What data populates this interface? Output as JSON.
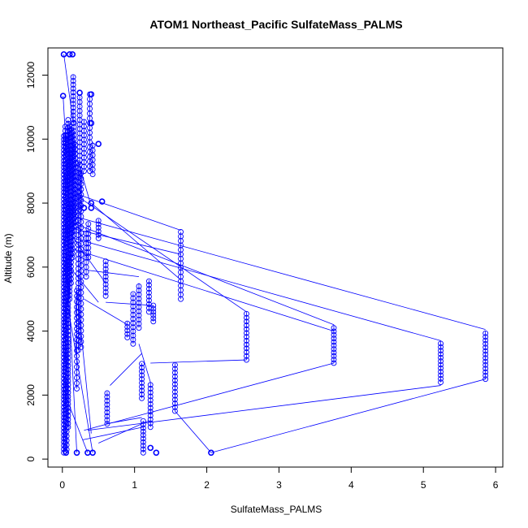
{
  "chart_data": {
    "type": "scatter",
    "title": "ATOM1 Northeast_Pacific SulfateMass_PALMS",
    "xlabel": "SulfateMass_PALMS",
    "ylabel": "Altitude (m)",
    "xlim": [
      -0.2,
      6.1
    ],
    "ylim": [
      -250,
      12850
    ],
    "xticks": [
      0,
      1,
      2,
      3,
      4,
      5,
      6
    ],
    "yticks": [
      0,
      2000,
      4000,
      6000,
      8000,
      10000,
      12000
    ],
    "connect_points": true,
    "marker": "open-circle",
    "color": "#0000ff",
    "clusters": [
      {
        "x": 0.02,
        "ymin": 200,
        "ymax": 10200,
        "step": 110
      },
      {
        "x": 0.04,
        "ymin": 250,
        "ymax": 10400,
        "step": 130
      },
      {
        "x": 0.06,
        "ymin": 300,
        "ymax": 10100,
        "step": 140
      },
      {
        "x": 0.08,
        "ymin": 1000,
        "ymax": 10600,
        "step": 120
      },
      {
        "x": 0.1,
        "ymin": 5000,
        "ymax": 10500,
        "step": 120
      },
      {
        "x": 0.12,
        "ymin": 5500,
        "ymax": 10400,
        "step": 130
      },
      {
        "x": 0.14,
        "ymin": 6300,
        "ymax": 10200,
        "step": 130
      },
      {
        "x": 0.16,
        "ymin": 7000,
        "ymax": 10600,
        "step": 130
      },
      {
        "x": 0.15,
        "ymin": 10500,
        "ymax": 12000,
        "step": 120
      },
      {
        "x": 0.18,
        "ymin": 7300,
        "ymax": 9900,
        "step": 140
      },
      {
        "x": 0.2,
        "ymin": 2200,
        "ymax": 5300,
        "step": 170
      },
      {
        "x": 0.22,
        "ymin": 3400,
        "ymax": 9300,
        "step": 150
      },
      {
        "x": 0.24,
        "ymin": 7800,
        "ymax": 11400,
        "step": 140
      },
      {
        "x": 0.26,
        "ymin": 3500,
        "ymax": 9000,
        "step": 170
      },
      {
        "x": 0.3,
        "ymin": 9000,
        "ymax": 10600,
        "step": 140
      },
      {
        "x": 0.33,
        "ymin": 5700,
        "ymax": 7100,
        "step": 150
      },
      {
        "x": 0.36,
        "ymin": 6300,
        "ymax": 7400,
        "step": 150
      },
      {
        "x": 0.38,
        "ymin": 9000,
        "ymax": 11400,
        "step": 150
      },
      {
        "x": 0.42,
        "ymin": 8900,
        "ymax": 9900,
        "step": 150
      },
      {
        "x": 0.5,
        "ymin": 6900,
        "ymax": 7500,
        "step": 110
      },
      {
        "x": 0.6,
        "ymin": 5100,
        "ymax": 6200,
        "step": 120
      },
      {
        "x": 0.62,
        "ymin": 1100,
        "ymax": 2100,
        "step": 120
      },
      {
        "x": 0.9,
        "ymin": 3800,
        "ymax": 4300,
        "step": 110
      },
      {
        "x": 0.98,
        "ymin": 3600,
        "ymax": 5200,
        "step": 130
      },
      {
        "x": 1.06,
        "ymin": 4100,
        "ymax": 5500,
        "step": 130
      },
      {
        "x": 1.1,
        "ymin": 1900,
        "ymax": 3000,
        "step": 120
      },
      {
        "x": 1.12,
        "ymin": 200,
        "ymax": 1200,
        "step": 110
      },
      {
        "x": 1.2,
        "ymin": 4600,
        "ymax": 5600,
        "step": 120
      },
      {
        "x": 1.22,
        "ymin": 1000,
        "ymax": 2400,
        "step": 120
      },
      {
        "x": 1.26,
        "ymin": 4300,
        "ymax": 4800,
        "step": 100
      },
      {
        "x": 1.56,
        "ymin": 1500,
        "ymax": 3000,
        "step": 120
      },
      {
        "x": 1.64,
        "ymin": 5000,
        "ymax": 7100,
        "step": 140
      },
      {
        "x": 2.55,
        "ymin": 3100,
        "ymax": 4600,
        "step": 120
      },
      {
        "x": 3.76,
        "ymin": 3000,
        "ymax": 4200,
        "step": 110
      },
      {
        "x": 5.24,
        "ymin": 2400,
        "ymax": 3700,
        "step": 110
      },
      {
        "x": 5.86,
        "ymin": 2500,
        "ymax": 4000,
        "step": 110
      }
    ],
    "isolated_points": [
      {
        "x": 0.02,
        "y": 12650
      },
      {
        "x": 0.1,
        "y": 12650
      },
      {
        "x": 0.14,
        "y": 12650
      },
      {
        "x": 0.01,
        "y": 11350
      },
      {
        "x": 0.24,
        "y": 11450
      },
      {
        "x": 0.4,
        "y": 11400
      },
      {
        "x": 0.4,
        "y": 10500
      },
      {
        "x": 0.5,
        "y": 9850
      },
      {
        "x": 0.55,
        "y": 8050
      },
      {
        "x": 0.4,
        "y": 8000
      },
      {
        "x": 0.3,
        "y": 7850
      },
      {
        "x": 0.4,
        "y": 7850
      },
      {
        "x": 0.05,
        "y": 200
      },
      {
        "x": 0.2,
        "y": 200
      },
      {
        "x": 0.35,
        "y": 200
      },
      {
        "x": 0.42,
        "y": 200
      },
      {
        "x": 1.22,
        "y": 350
      },
      {
        "x": 1.3,
        "y": 200
      },
      {
        "x": 2.06,
        "y": 200
      }
    ],
    "connecting_lines": [
      {
        "x1": 0.18,
        "y1": 8300,
        "x2": 1.64,
        "y2": 7150
      },
      {
        "x1": 0.15,
        "y1": 7200,
        "x2": 1.64,
        "y2": 6400
      },
      {
        "x1": 0.22,
        "y1": 8200,
        "x2": 2.55,
        "y2": 4600
      },
      {
        "x1": 0.12,
        "y1": 7400,
        "x2": 3.76,
        "y2": 4200
      },
      {
        "x1": 0.1,
        "y1": 6600,
        "x2": 3.76,
        "y2": 4000
      },
      {
        "x1": 0.16,
        "y1": 6900,
        "x2": 5.24,
        "y2": 3700
      },
      {
        "x1": 0.14,
        "y1": 7600,
        "x2": 5.86,
        "y2": 4050
      },
      {
        "x1": 0.4,
        "y1": 8000,
        "x2": 1.64,
        "y2": 5600
      },
      {
        "x1": 0.6,
        "y1": 4900,
        "x2": 1.26,
        "y2": 4800
      },
      {
        "x1": 0.36,
        "y1": 5900,
        "x2": 1.06,
        "y2": 5700
      },
      {
        "x1": 0.3,
        "y1": 5000,
        "x2": 0.9,
        "y2": 4200
      },
      {
        "x1": 0.6,
        "y1": 1100,
        "x2": 1.1,
        "y2": 1300
      },
      {
        "x1": 0.3,
        "y1": 900,
        "x2": 3.76,
        "y2": 3000
      },
      {
        "x1": 0.35,
        "y1": 900,
        "x2": 5.24,
        "y2": 2300
      },
      {
        "x1": 2.06,
        "y1": 200,
        "x2": 5.86,
        "y2": 2500
      },
      {
        "x1": 1.56,
        "y1": 1500,
        "x2": 2.06,
        "y2": 200
      },
      {
        "x1": 1.22,
        "y1": 3000,
        "x2": 2.55,
        "y2": 3100
      },
      {
        "x1": 0.66,
        "y1": 2300,
        "x2": 1.1,
        "y2": 3300
      },
      {
        "x1": 1.06,
        "y1": 3600,
        "x2": 1.22,
        "y2": 2400
      },
      {
        "x1": 0.28,
        "y1": 600,
        "x2": 1.12,
        "y2": 1000
      },
      {
        "x1": 0.5,
        "y1": 500,
        "x2": 1.2,
        "y2": 1200
      },
      {
        "x1": 0.15,
        "y1": 10500,
        "x2": 0.02,
        "y2": 12650
      },
      {
        "x1": 0.01,
        "y1": 11350,
        "x2": 0.05,
        "y2": 9800
      },
      {
        "x1": 0.04,
        "y1": 2000,
        "x2": 0.35,
        "y2": 200
      },
      {
        "x1": 0.06,
        "y1": 5000,
        "x2": 0.42,
        "y2": 200
      },
      {
        "x1": 0.08,
        "y1": 5500,
        "x2": 0.2,
        "y2": 200
      },
      {
        "x1": 0.1,
        "y1": 6000,
        "x2": 0.5,
        "y2": 4900
      },
      {
        "x1": 0.2,
        "y1": 5300,
        "x2": 0.4,
        "y2": 800
      },
      {
        "x1": 0.12,
        "y1": 7000,
        "x2": 0.6,
        "y2": 5500
      },
      {
        "x1": 0.22,
        "y1": 9300,
        "x2": 0.4,
        "y2": 7900
      }
    ]
  }
}
